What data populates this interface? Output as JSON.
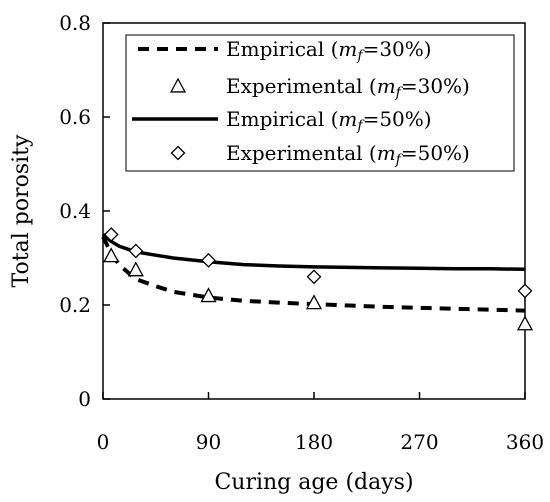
{
  "chart_data": {
    "type": "line",
    "title": "",
    "xlabel": "Curing age (days)",
    "ylabel": "Total porosity",
    "xlim": [
      0,
      360
    ],
    "ylim": [
      0,
      0.8
    ],
    "xticks": [
      0,
      90,
      180,
      270,
      360
    ],
    "yticks": [
      0,
      0.2,
      0.4,
      0.6,
      0.8
    ],
    "xtick_labels": [
      "0",
      "90",
      "180",
      "270",
      "360"
    ],
    "ytick_labels": [
      "0",
      "0.2",
      "0.4",
      "0.6",
      "0.8"
    ],
    "grid": false,
    "legend_position": "top-right",
    "series": [
      {
        "name": "Empirical (mf=30%)",
        "legend_prefix": "Empirical (",
        "legend_var": "m",
        "legend_sub": "f",
        "legend_suffix": "=30%)",
        "style": "dashed-line",
        "x": [
          0,
          7,
          14,
          28,
          45,
          60,
          90,
          120,
          150,
          180,
          210,
          240,
          270,
          300,
          330,
          360
        ],
        "y": [
          0.345,
          0.31,
          0.285,
          0.255,
          0.24,
          0.228,
          0.216,
          0.209,
          0.205,
          0.202,
          0.199,
          0.196,
          0.194,
          0.192,
          0.19,
          0.188
        ]
      },
      {
        "name": "Experimental (mf=30%)",
        "legend_prefix": "Experimental (",
        "legend_var": "m",
        "legend_sub": "f",
        "legend_suffix": "=30%)",
        "style": "triangle",
        "x": [
          7,
          28,
          90,
          180,
          360
        ],
        "y": [
          0.305,
          0.275,
          0.22,
          0.205,
          0.16
        ]
      },
      {
        "name": "Empirical (mf=50%)",
        "legend_prefix": "Empirical (",
        "legend_var": "m",
        "legend_sub": "f",
        "legend_suffix": "=50%)",
        "style": "solid-line",
        "x": [
          0,
          7,
          14,
          28,
          45,
          60,
          90,
          120,
          150,
          180,
          210,
          240,
          270,
          300,
          330,
          360
        ],
        "y": [
          0.35,
          0.335,
          0.325,
          0.313,
          0.306,
          0.3,
          0.292,
          0.286,
          0.283,
          0.281,
          0.28,
          0.279,
          0.278,
          0.277,
          0.277,
          0.276
        ]
      },
      {
        "name": "Experimental (mf=50%)",
        "legend_prefix": "Experimental (",
        "legend_var": "m",
        "legend_sub": "f",
        "legend_suffix": "=50%)",
        "style": "diamond",
        "x": [
          7,
          28,
          90,
          180,
          360
        ],
        "y": [
          0.35,
          0.315,
          0.295,
          0.26,
          0.23
        ]
      }
    ]
  }
}
